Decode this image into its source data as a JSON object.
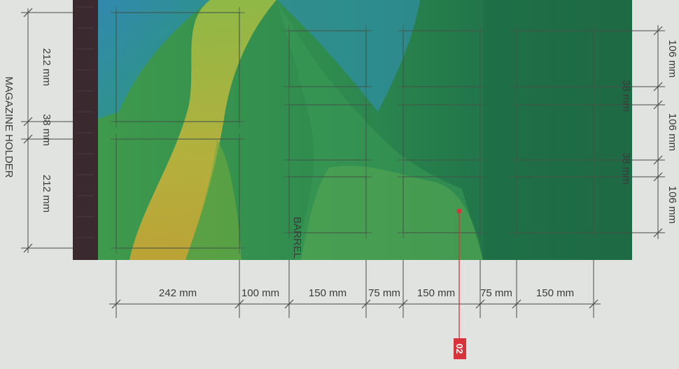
{
  "labels": {
    "left_section": "MAGAZINE HOLDER",
    "barrel": "BARREL",
    "callout": "02"
  },
  "vertical_dims_left": [
    "212 mm",
    "38 mm",
    "212 mm"
  ],
  "vertical_dims_right": [
    "106 mm",
    "38 mm",
    "106 mm",
    "38 mm",
    "106 mm"
  ],
  "horizontal_dims": [
    "242 mm",
    "100 mm",
    "150 mm",
    "75 mm",
    "150 mm",
    "75 mm",
    "150 mm"
  ],
  "colors": {
    "callout": "#d8333b",
    "board_dark": "#1f6b45",
    "board_green": "#2e8a4e",
    "board_yellow": "#c8b43a",
    "board_blue": "#2f7fb2",
    "strip": "#3a2a30"
  }
}
